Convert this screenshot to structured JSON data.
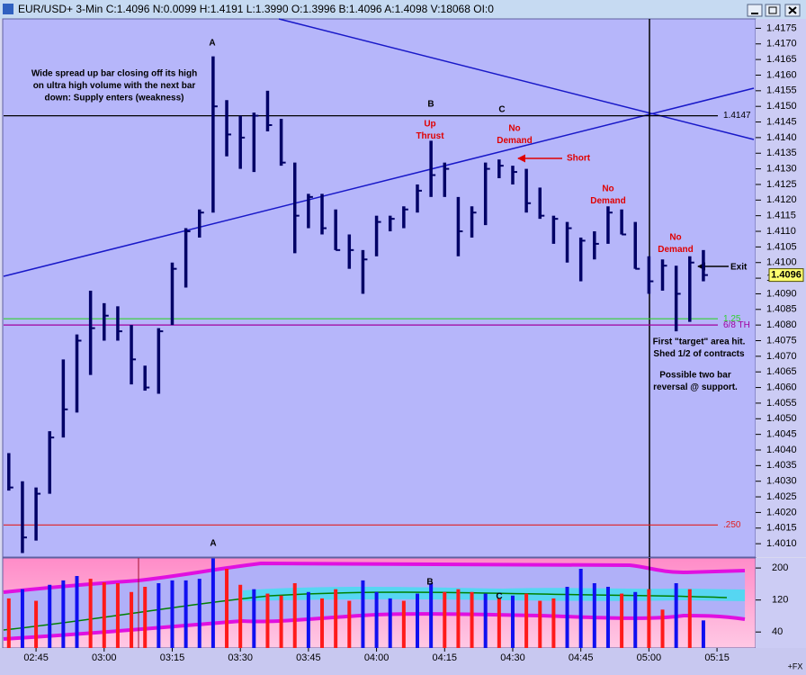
{
  "window": {
    "title": "EUR/USD+ 3-Min C:1.4096 N:0.0099 H:1.4191 L:1.3990 O:1.3996 B:1.4096 A:1.4098 V:18068 OI:0"
  },
  "chart_data": [
    {
      "type": "ohlc",
      "color": "#000066",
      "high": [
        1.4039,
        1.403,
        1.4028,
        1.4046,
        1.4069,
        1.4077,
        1.4091,
        1.4087,
        1.4086,
        1.408,
        1.4067,
        1.4079,
        1.41,
        1.4111,
        1.4117,
        1.4166,
        1.4152,
        1.4147,
        1.4148,
        1.4155,
        1.4146,
        1.4132,
        1.4122,
        1.4122,
        1.4117,
        1.4109,
        1.4104,
        1.4115,
        1.4115,
        1.4118,
        1.4125,
        1.4139,
        1.4132,
        1.4121,
        1.4118,
        1.4132,
        1.4133,
        1.4131,
        1.413,
        1.4124,
        1.4115,
        1.4113,
        1.4108,
        1.411,
        1.4118,
        1.4117,
        1.4113,
        1.4102,
        1.4101,
        1.4099,
        1.4102,
        1.4104,
        null
      ],
      "low": [
        1.4027,
        1.4007,
        1.4011,
        1.4026,
        1.4044,
        1.4052,
        1.4064,
        1.4075,
        1.4075,
        1.4061,
        1.4059,
        1.4058,
        1.408,
        1.4092,
        1.4108,
        1.4116,
        1.4134,
        1.413,
        1.4129,
        1.4142,
        1.4131,
        1.4103,
        1.4111,
        1.4109,
        1.4104,
        1.4098,
        1.409,
        1.4102,
        1.411,
        1.4111,
        1.4116,
        1.4121,
        1.4121,
        1.4102,
        1.4108,
        1.4112,
        1.4127,
        1.4125,
        1.4116,
        1.4114,
        1.4106,
        1.41,
        1.4094,
        1.4101,
        1.4106,
        1.4109,
        1.4098,
        1.409,
        1.4091,
        1.4078,
        1.4081,
        1.4094,
        null
      ],
      "close": [
        1.4028,
        1.4012,
        1.4026,
        1.4044,
        1.4053,
        1.4075,
        1.4079,
        1.4083,
        1.4078,
        1.4069,
        1.406,
        1.4078,
        1.4098,
        1.411,
        1.4116,
        1.415,
        1.4141,
        1.414,
        1.4147,
        1.4144,
        1.4132,
        1.4115,
        1.4121,
        1.4111,
        1.4104,
        1.4104,
        1.4101,
        1.4113,
        1.4114,
        1.4117,
        1.4123,
        1.4128,
        1.413,
        1.411,
        1.4116,
        1.413,
        1.4131,
        1.4129,
        1.4119,
        1.4115,
        1.4114,
        1.4111,
        1.4107,
        1.4106,
        1.4116,
        1.4109,
        1.4098,
        1.4094,
        1.4099,
        1.409,
        1.41,
        1.4096,
        null
      ],
      "ylim": [
        1.4006,
        1.4178
      ],
      "yticks": [
        {
          "value": 1.401,
          "label": "1.4010"
        },
        1.4015,
        {
          "value": 1.402,
          "label": "1.4020"
        },
        1.4025,
        {
          "value": 1.403,
          "label": "1.4030"
        },
        1.4035,
        {
          "value": 1.404,
          "label": "1.4040"
        },
        1.4045,
        {
          "value": 1.405,
          "label": "1.4050"
        },
        1.4055,
        {
          "value": 1.406,
          "label": "1.4060"
        },
        1.4065,
        {
          "value": 1.407,
          "label": "1.4070"
        },
        1.4075,
        {
          "value": 1.408,
          "label": "1.4080"
        },
        1.4085,
        {
          "value": 1.409,
          "label": "1.4090"
        },
        1.4095,
        {
          "value": 1.41,
          "label": "1.4100"
        },
        1.4105,
        {
          "value": 1.411,
          "label": "1.4110"
        },
        1.4115,
        {
          "value": 1.412,
          "label": "1.4120"
        },
        1.4125,
        {
          "value": 1.413,
          "label": "1.4130"
        },
        1.4135,
        {
          "value": 1.414,
          "label": "1.4140"
        },
        1.4145,
        {
          "value": 1.415,
          "label": "1.4150"
        },
        1.4155,
        {
          "value": 1.416,
          "label": "1.4160"
        },
        1.4165,
        {
          "value": 1.417,
          "label": "1.4170"
        },
        1.4175
      ],
      "levels": [
        {
          "name": "1.4147",
          "value": 1.4147,
          "color": "#000000"
        },
        {
          "name": "1.25",
          "value": 1.4082,
          "color": "#30d030"
        },
        {
          "name": "6/8  TH",
          "value": 1.408,
          "color": "#a000a0"
        },
        {
          "name": ".250",
          "value": 1.4016,
          "color": "#e02020"
        }
      ],
      "last_price": 1.4096,
      "annotations": [
        {
          "lines": [
            "A"
          ],
          "color": "#000000"
        },
        {
          "lines": [
            "Wide spread up bar closing off its high",
            "on ultra high volume with the next bar",
            "down: Supply enters (weakness)"
          ],
          "color": "#000000"
        },
        {
          "lines": [
            "B"
          ],
          "color": "#000000"
        },
        {
          "lines": [
            "C"
          ],
          "color": "#000000"
        },
        {
          "lines": [
            "Up",
            "Thrust"
          ],
          "color": "#e00000"
        },
        {
          "lines": [
            "No",
            "Demand"
          ],
          "color": "#e00000"
        },
        {
          "lines": [
            "Short"
          ],
          "color": "#e00000"
        },
        {
          "lines": [
            "No",
            "Demand"
          ],
          "color": "#e00000"
        },
        {
          "lines": [
            "No",
            "Demand"
          ],
          "color": "#e00000"
        },
        {
          "lines": [
            "Exit"
          ],
          "color": "#000000"
        },
        {
          "lines": [
            "First \"target\" area hit.",
            "Shed 1/2 of contracts"
          ],
          "color": "#000000"
        },
        {
          "lines": [
            "Possible two bar",
            "reversal @ support."
          ],
          "color": "#000000"
        }
      ]
    },
    {
      "type": "bar",
      "categories": [
        null,
        null,
        "02:45",
        null,
        null,
        null,
        null,
        "03:00",
        null,
        null,
        null,
        null,
        "03:15",
        null,
        null,
        null,
        null,
        "03:30",
        null,
        null,
        null,
        null,
        "03:45",
        null,
        null,
        null,
        null,
        "04:00",
        null,
        null,
        null,
        null,
        "04:15",
        null,
        null,
        null,
        null,
        "04:30",
        null,
        null,
        null,
        null,
        "04:45",
        null,
        null,
        null,
        null,
        "05:00",
        null,
        null,
        null,
        null,
        "05:15"
      ],
      "values": [
        124,
        147,
        118,
        158,
        169,
        180,
        173,
        164,
        162,
        140,
        153,
        162,
        169,
        169,
        173,
        224,
        198,
        158,
        147,
        136,
        131,
        162,
        140,
        124,
        147,
        118,
        169,
        140,
        124,
        118,
        136,
        162,
        140,
        147,
        140,
        136,
        124,
        131,
        136,
        118,
        124,
        153,
        198,
        162,
        153,
        136,
        140,
        147,
        96,
        162,
        147,
        69,
        null
      ],
      "bar_colors": [
        "#ff1a1a",
        "#1010f0",
        "#ff1a1a",
        "#1010f0",
        "#1010f0",
        "#1010f0",
        "#ff1a1a",
        "#ff1a1a",
        "#ff1a1a",
        "#ff1a1a",
        "#ff1a1a",
        "#1010f0",
        "#1010f0",
        "#1010f0",
        "#1010f0",
        "#1010f0",
        "#ff1a1a",
        "#ff1a1a",
        "#1010f0",
        "#ff1a1a",
        "#ff1a1a",
        "#ff1a1a",
        "#1010f0",
        "#ff1a1a",
        "#ff1a1a",
        "#ff1a1a",
        "#1010f0",
        "#1010f0",
        "#1010f0",
        "#ff1a1a",
        "#1010f0",
        "#1010f0",
        "#ff1a1a",
        "#ff1a1a",
        "#ff1a1a",
        "#1010f0",
        "#ff1a1a",
        "#1010f0",
        "#ff1a1a",
        "#ff1a1a",
        "#ff1a1a",
        "#1010f0",
        "#1010f0",
        "#1010f0",
        "#1010f0",
        "#ff1a1a",
        "#1010f0",
        "#ff1a1a",
        "#ff1a1a",
        "#1010f0",
        "#ff1a1a",
        "#1010f0",
        null
      ],
      "ylim": [
        0,
        225
      ],
      "yticks": [
        40,
        120,
        200
      ],
      "annotations": [
        {
          "lines": [
            "A"
          ],
          "color": "#000000"
        },
        {
          "lines": [
            "B"
          ],
          "color": "#000000"
        },
        {
          "lines": [
            "C"
          ],
          "color": "#000000"
        }
      ]
    }
  ],
  "footer": "+FX"
}
